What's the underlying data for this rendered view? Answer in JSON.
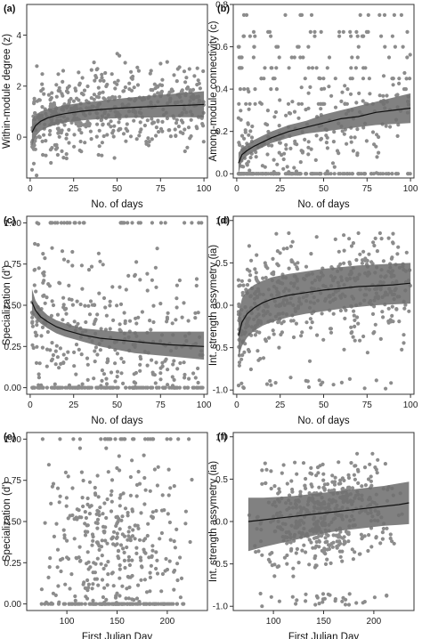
{
  "colors": {
    "points": "#8c8c8c",
    "band": "#6f6f6f",
    "line": "#111111",
    "frame": "#333333"
  },
  "chart_data": [
    {
      "id": "a",
      "letter": "(a)",
      "type": "scatter",
      "xlabel": "No. of days",
      "ylabel": "Within-module degree (z)",
      "xlim": [
        -2,
        102
      ],
      "ylim": [
        -1.6,
        5.2
      ],
      "xticks": [
        0,
        25,
        50,
        75,
        100
      ],
      "yticks": [
        0,
        2,
        4
      ],
      "fit": {
        "x": [
          1,
          3,
          6,
          10,
          15,
          20,
          30,
          40,
          50,
          60,
          70,
          80,
          90,
          100
        ],
        "y": [
          0.18,
          0.45,
          0.62,
          0.75,
          0.85,
          0.92,
          1.02,
          1.08,
          1.13,
          1.17,
          1.2,
          1.23,
          1.25,
          1.28
        ],
        "lower": [
          -0.35,
          0.02,
          0.25,
          0.38,
          0.5,
          0.58,
          0.66,
          0.71,
          0.74,
          0.76,
          0.77,
          0.78,
          0.78,
          0.77
        ],
        "upper": [
          0.7,
          0.88,
          1.0,
          1.1,
          1.18,
          1.25,
          1.35,
          1.42,
          1.5,
          1.57,
          1.63,
          1.69,
          1.74,
          1.8
        ]
      },
      "sample": {
        "n": 520,
        "seed": 11,
        "ybase": "fit",
        "yspread": 1.0,
        "ymin": -1.5,
        "ymax": 5.0
      }
    },
    {
      "id": "b",
      "letter": "(b)",
      "type": "scatter",
      "xlabel": "No. of days",
      "ylabel": "Among-module connectivity (c)",
      "xlim": [
        -2,
        102
      ],
      "ylim": [
        -0.02,
        0.8
      ],
      "xticks": [
        0,
        25,
        50,
        75,
        100
      ],
      "yticks": [
        0.0,
        0.2,
        0.4,
        0.6,
        0.8
      ],
      "fit": {
        "x": [
          1,
          3,
          6,
          10,
          15,
          20,
          30,
          40,
          50,
          60,
          70,
          80,
          90,
          100
        ],
        "y": [
          0.05,
          0.09,
          0.11,
          0.13,
          0.15,
          0.17,
          0.2,
          0.22,
          0.24,
          0.26,
          0.27,
          0.29,
          0.3,
          0.31
        ],
        "lower": [
          0.0,
          0.06,
          0.085,
          0.105,
          0.125,
          0.145,
          0.17,
          0.19,
          0.2,
          0.21,
          0.22,
          0.23,
          0.235,
          0.24
        ],
        "upper": [
          0.1,
          0.12,
          0.14,
          0.16,
          0.18,
          0.2,
          0.23,
          0.25,
          0.28,
          0.3,
          0.32,
          0.34,
          0.36,
          0.38
        ]
      },
      "sample": {
        "n": 480,
        "seed": 23,
        "ybase": "fit",
        "yspread": 0.14,
        "ymin": 0.0,
        "ymax": 0.75,
        "zero_fraction": 0.35,
        "bands": [
          0.5,
          0.55,
          0.6,
          0.65,
          0.45,
          0.4,
          0.33,
          0.67,
          0.75
        ]
      }
    },
    {
      "id": "c",
      "letter": "(c)",
      "type": "scatter",
      "xlabel": "No. of days",
      "ylabel": "Specialization (d')",
      "xlim": [
        -2,
        102
      ],
      "ylim": [
        -0.04,
        1.04
      ],
      "xticks": [
        0,
        25,
        50,
        75,
        100
      ],
      "yticks": [
        0.0,
        0.25,
        0.5,
        0.75,
        1.0
      ],
      "fit": {
        "x": [
          1,
          3,
          6,
          10,
          15,
          20,
          30,
          40,
          50,
          60,
          70,
          80,
          90,
          100
        ],
        "y": [
          0.52,
          0.47,
          0.43,
          0.4,
          0.37,
          0.35,
          0.32,
          0.3,
          0.29,
          0.28,
          0.27,
          0.26,
          0.255,
          0.25
        ],
        "lower": [
          0.45,
          0.42,
          0.39,
          0.36,
          0.33,
          0.31,
          0.28,
          0.25,
          0.23,
          0.21,
          0.2,
          0.19,
          0.18,
          0.17
        ],
        "upper": [
          0.6,
          0.53,
          0.48,
          0.44,
          0.41,
          0.39,
          0.36,
          0.35,
          0.34,
          0.34,
          0.34,
          0.34,
          0.34,
          0.34
        ]
      },
      "sample": {
        "n": 480,
        "seed": 37,
        "ybase": "fit",
        "yspread": 0.28,
        "ymin": 0.0,
        "ymax": 1.0,
        "zero_fraction": 0.18,
        "one_fraction": 0.07
      }
    },
    {
      "id": "d",
      "letter": "(d)",
      "type": "scatter",
      "xlabel": "No. of days",
      "ylabel": "Int. strength assymetry (ia)",
      "xlim": [
        -2,
        102
      ],
      "ylim": [
        -1.05,
        1.05
      ],
      "xticks": [
        0,
        25,
        50,
        75,
        100
      ],
      "yticks": [
        -1.0,
        -0.5,
        0.0,
        0.5,
        1.0
      ],
      "fit": {
        "x": [
          1,
          3,
          6,
          10,
          15,
          20,
          30,
          40,
          50,
          60,
          70,
          80,
          90,
          100
        ],
        "y": [
          -0.36,
          -0.2,
          -0.1,
          -0.03,
          0.03,
          0.07,
          0.12,
          0.15,
          0.18,
          0.2,
          0.22,
          0.23,
          0.24,
          0.26
        ],
        "lower": [
          -0.62,
          -0.48,
          -0.38,
          -0.3,
          -0.24,
          -0.2,
          -0.14,
          -0.1,
          -0.07,
          -0.04,
          -0.02,
          0.0,
          0.01,
          0.02
        ],
        "upper": [
          -0.1,
          0.08,
          0.18,
          0.24,
          0.29,
          0.33,
          0.37,
          0.4,
          0.43,
          0.45,
          0.47,
          0.48,
          0.49,
          0.5
        ]
      },
      "sample": {
        "n": 520,
        "seed": 51,
        "ybase": "fit",
        "yspread": 0.38,
        "ymin": -1.0,
        "ymax": 0.85,
        "low_fraction": 0.06
      }
    },
    {
      "id": "e",
      "letter": "(e)",
      "type": "scatter",
      "xlabel": "First Julian Day",
      "ylabel": "Specialization (d')",
      "xlim": [
        60,
        240
      ],
      "ylim": [
        -0.04,
        1.04
      ],
      "xticks": [
        100,
        150,
        200
      ],
      "yticks": [
        0.0,
        0.25,
        0.5,
        0.75,
        1.0
      ],
      "fit": null,
      "sample": {
        "n": 470,
        "seed": 67,
        "xmin": 75,
        "xmax": 232,
        "xmode": 140,
        "ybase": 0.35,
        "yspread": 0.32,
        "ymin": 0.0,
        "ymax": 1.0,
        "zero_fraction": 0.16,
        "one_fraction": 0.06
      }
    },
    {
      "id": "f",
      "letter": "(f)",
      "type": "scatter",
      "xlabel": "First Julian Day",
      "ylabel": "Int. strength assymetry (ia)",
      "xlim": [
        60,
        240
      ],
      "ylim": [
        -1.05,
        1.05
      ],
      "xticks": [
        100,
        150,
        200
      ],
      "yticks": [
        -1.0,
        -0.5,
        0.0,
        0.5,
        1.0
      ],
      "fit": {
        "x": [
          75,
          90,
          105,
          120,
          135,
          150,
          165,
          180,
          195,
          210,
          225,
          235
        ],
        "y": [
          0.0,
          0.02,
          0.04,
          0.06,
          0.08,
          0.1,
          0.12,
          0.14,
          0.16,
          0.18,
          0.2,
          0.22
        ],
        "lower": [
          -0.35,
          -0.3,
          -0.26,
          -0.22,
          -0.18,
          -0.14,
          -0.11,
          -0.09,
          -0.07,
          -0.05,
          -0.04,
          -0.03
        ],
        "upper": [
          0.28,
          0.28,
          0.29,
          0.3,
          0.32,
          0.34,
          0.36,
          0.38,
          0.4,
          0.42,
          0.45,
          0.47
        ]
      },
      "sample": {
        "n": 520,
        "seed": 79,
        "xmin": 78,
        "xmax": 232,
        "xmode": 140,
        "ybase": "fit",
        "yspread": 0.35,
        "ymin": -1.0,
        "ymax": 0.8,
        "low_fraction": 0.07
      }
    }
  ]
}
